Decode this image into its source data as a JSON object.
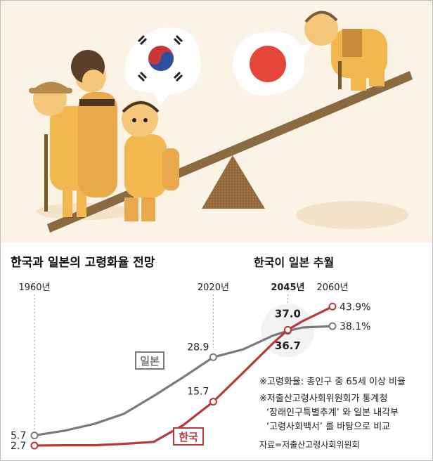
{
  "colors": {
    "korea": "#b8393b",
    "japan": "#7a7a7a",
    "illustration_bg": "#fbf3e6",
    "figure_orange": "#f2b84f",
    "plank_brown": "#8a6a40"
  },
  "illustration": {
    "icons": [
      "korean-flag-icon",
      "japanese-flag-icon",
      "seesaw-icon",
      "elderly-figures-icon"
    ]
  },
  "chart_data": {
    "type": "line",
    "title": "한국과 일본의 고령화율 전망",
    "highlight_label": "한국이 일본 추월",
    "unit": "%",
    "year_labels": [
      {
        "year": 1960,
        "text": "1960년",
        "bold": false
      },
      {
        "year": 2020,
        "text": "2020년",
        "bold": false
      },
      {
        "year": 2045,
        "text": "2045년",
        "bold": true
      },
      {
        "year": 2060,
        "text": "2060년",
        "bold": false
      }
    ],
    "xlim": [
      1960,
      2060
    ],
    "ylim": [
      0,
      45
    ],
    "series": [
      {
        "name": "일본",
        "color": "#7a7a7a",
        "points": [
          {
            "x": 1960,
            "y": 5.7
          },
          {
            "x": 1970,
            "y": 7.1
          },
          {
            "x": 1980,
            "y": 9.1
          },
          {
            "x": 1990,
            "y": 12.1
          },
          {
            "x": 2000,
            "y": 17.4
          },
          {
            "x": 2010,
            "y": 23.0
          },
          {
            "x": 2020,
            "y": 28.9
          },
          {
            "x": 2030,
            "y": 31.2
          },
          {
            "x": 2040,
            "y": 35.3
          },
          {
            "x": 2045,
            "y": 36.7
          },
          {
            "x": 2050,
            "y": 37.7
          },
          {
            "x": 2060,
            "y": 38.1
          }
        ],
        "labels": [
          {
            "x": 1960,
            "y": 5.7,
            "text": "5.7",
            "position": "left"
          },
          {
            "x": 2020,
            "y": 28.9,
            "text": "28.9",
            "position": "above-left"
          },
          {
            "x": 2045,
            "y": 36.7,
            "text": "36.7",
            "position": "below",
            "bold": true
          },
          {
            "x": 2060,
            "y": 38.1,
            "text": "38.1%",
            "position": "right"
          }
        ]
      },
      {
        "name": "한국",
        "color": "#b8393b",
        "points": [
          {
            "x": 1960,
            "y": 2.7
          },
          {
            "x": 1970,
            "y": 2.8
          },
          {
            "x": 1980,
            "y": 2.8
          },
          {
            "x": 1990,
            "y": 3.2
          },
          {
            "x": 2000,
            "y": 3.8
          },
          {
            "x": 2010,
            "y": 8.8
          },
          {
            "x": 2020,
            "y": 15.7
          },
          {
            "x": 2030,
            "y": 24.3
          },
          {
            "x": 2040,
            "y": 33.0
          },
          {
            "x": 2045,
            "y": 37.0
          },
          {
            "x": 2050,
            "y": 39.6
          },
          {
            "x": 2060,
            "y": 43.9
          }
        ],
        "labels": [
          {
            "x": 1960,
            "y": 2.7,
            "text": "2.7",
            "position": "left"
          },
          {
            "x": 2020,
            "y": 15.7,
            "text": "15.7",
            "position": "above-left"
          },
          {
            "x": 2045,
            "y": 37.0,
            "text": "37.0",
            "position": "above",
            "bold": true
          },
          {
            "x": 2060,
            "y": 43.9,
            "text": "43.9%",
            "position": "right"
          }
        ]
      }
    ],
    "notes": [
      "※고령화율: 총인구 중 65세 이상 비율",
      "※저출산고령사회위원회가 통계청",
      "‘장래인구특별추계’ 와 일본 내각부",
      "‘고령사회백서’ 를 바탕으로 비교"
    ],
    "source": "자료=저출산고령사회위원회",
    "grid": false,
    "legend": "inline-labels"
  }
}
